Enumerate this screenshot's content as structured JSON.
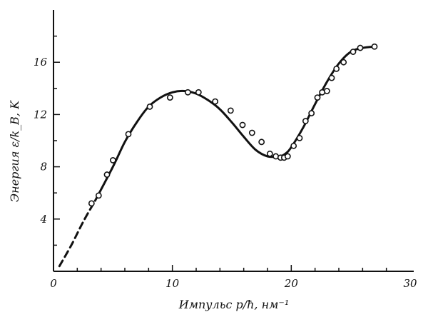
{
  "chart_data": {
    "type": "line",
    "title": "",
    "xlabel": "Импульс p/ħ, нм⁻¹",
    "ylabel": "Энергия ε/k_B, K",
    "xlim": [
      0,
      30
    ],
    "ylim": [
      0,
      20
    ],
    "x_ticks": [
      0,
      10,
      20,
      30
    ],
    "y_ticks": [
      4,
      8,
      12,
      16
    ],
    "x_tick_labels": [
      "0",
      "10",
      "20",
      "30"
    ],
    "y_tick_labels": [
      "4",
      "8",
      "12",
      "16"
    ],
    "grid": false,
    "legend": "none",
    "line_color": "#111111",
    "series": [
      {
        "style": "dashed",
        "x": [
          0.5,
          1.5,
          2.5,
          3.5
        ],
        "y": [
          0.4,
          2.0,
          3.8,
          5.4
        ]
      },
      {
        "style": "solid",
        "x": [
          3.5,
          5,
          6,
          7,
          8,
          9,
          10,
          11,
          12,
          13,
          14,
          15,
          16,
          17,
          18,
          19,
          19.5,
          20,
          21,
          22,
          23,
          24,
          25,
          26,
          27
        ],
        "y": [
          5.4,
          8.0,
          9.9,
          11.4,
          12.6,
          13.3,
          13.7,
          13.8,
          13.6,
          13.1,
          12.4,
          11.4,
          10.3,
          9.3,
          8.8,
          8.8,
          9.0,
          9.5,
          11.0,
          12.8,
          14.5,
          15.9,
          16.8,
          17.1,
          17.2
        ]
      }
    ],
    "points": {
      "x": [
        3.2,
        3.8,
        4.5,
        5.0,
        6.3,
        8.1,
        9.8,
        11.3,
        12.2,
        13.6,
        14.9,
        15.9,
        16.7,
        17.5,
        18.2,
        18.7,
        19.1,
        19.4,
        19.7,
        20.2,
        20.7,
        21.2,
        21.7,
        22.2,
        22.6,
        23.0,
        23.4,
        23.8,
        24.4,
        25.2,
        25.8,
        27.0
      ],
      "y": [
        5.2,
        5.8,
        7.4,
        8.5,
        10.5,
        12.6,
        13.3,
        13.7,
        13.7,
        13.0,
        12.3,
        11.2,
        10.6,
        9.9,
        9.0,
        8.8,
        8.7,
        8.7,
        8.8,
        9.6,
        10.2,
        11.5,
        12.1,
        13.3,
        13.7,
        13.8,
        14.8,
        15.5,
        16.0,
        16.8,
        17.1,
        17.2
      ]
    }
  }
}
